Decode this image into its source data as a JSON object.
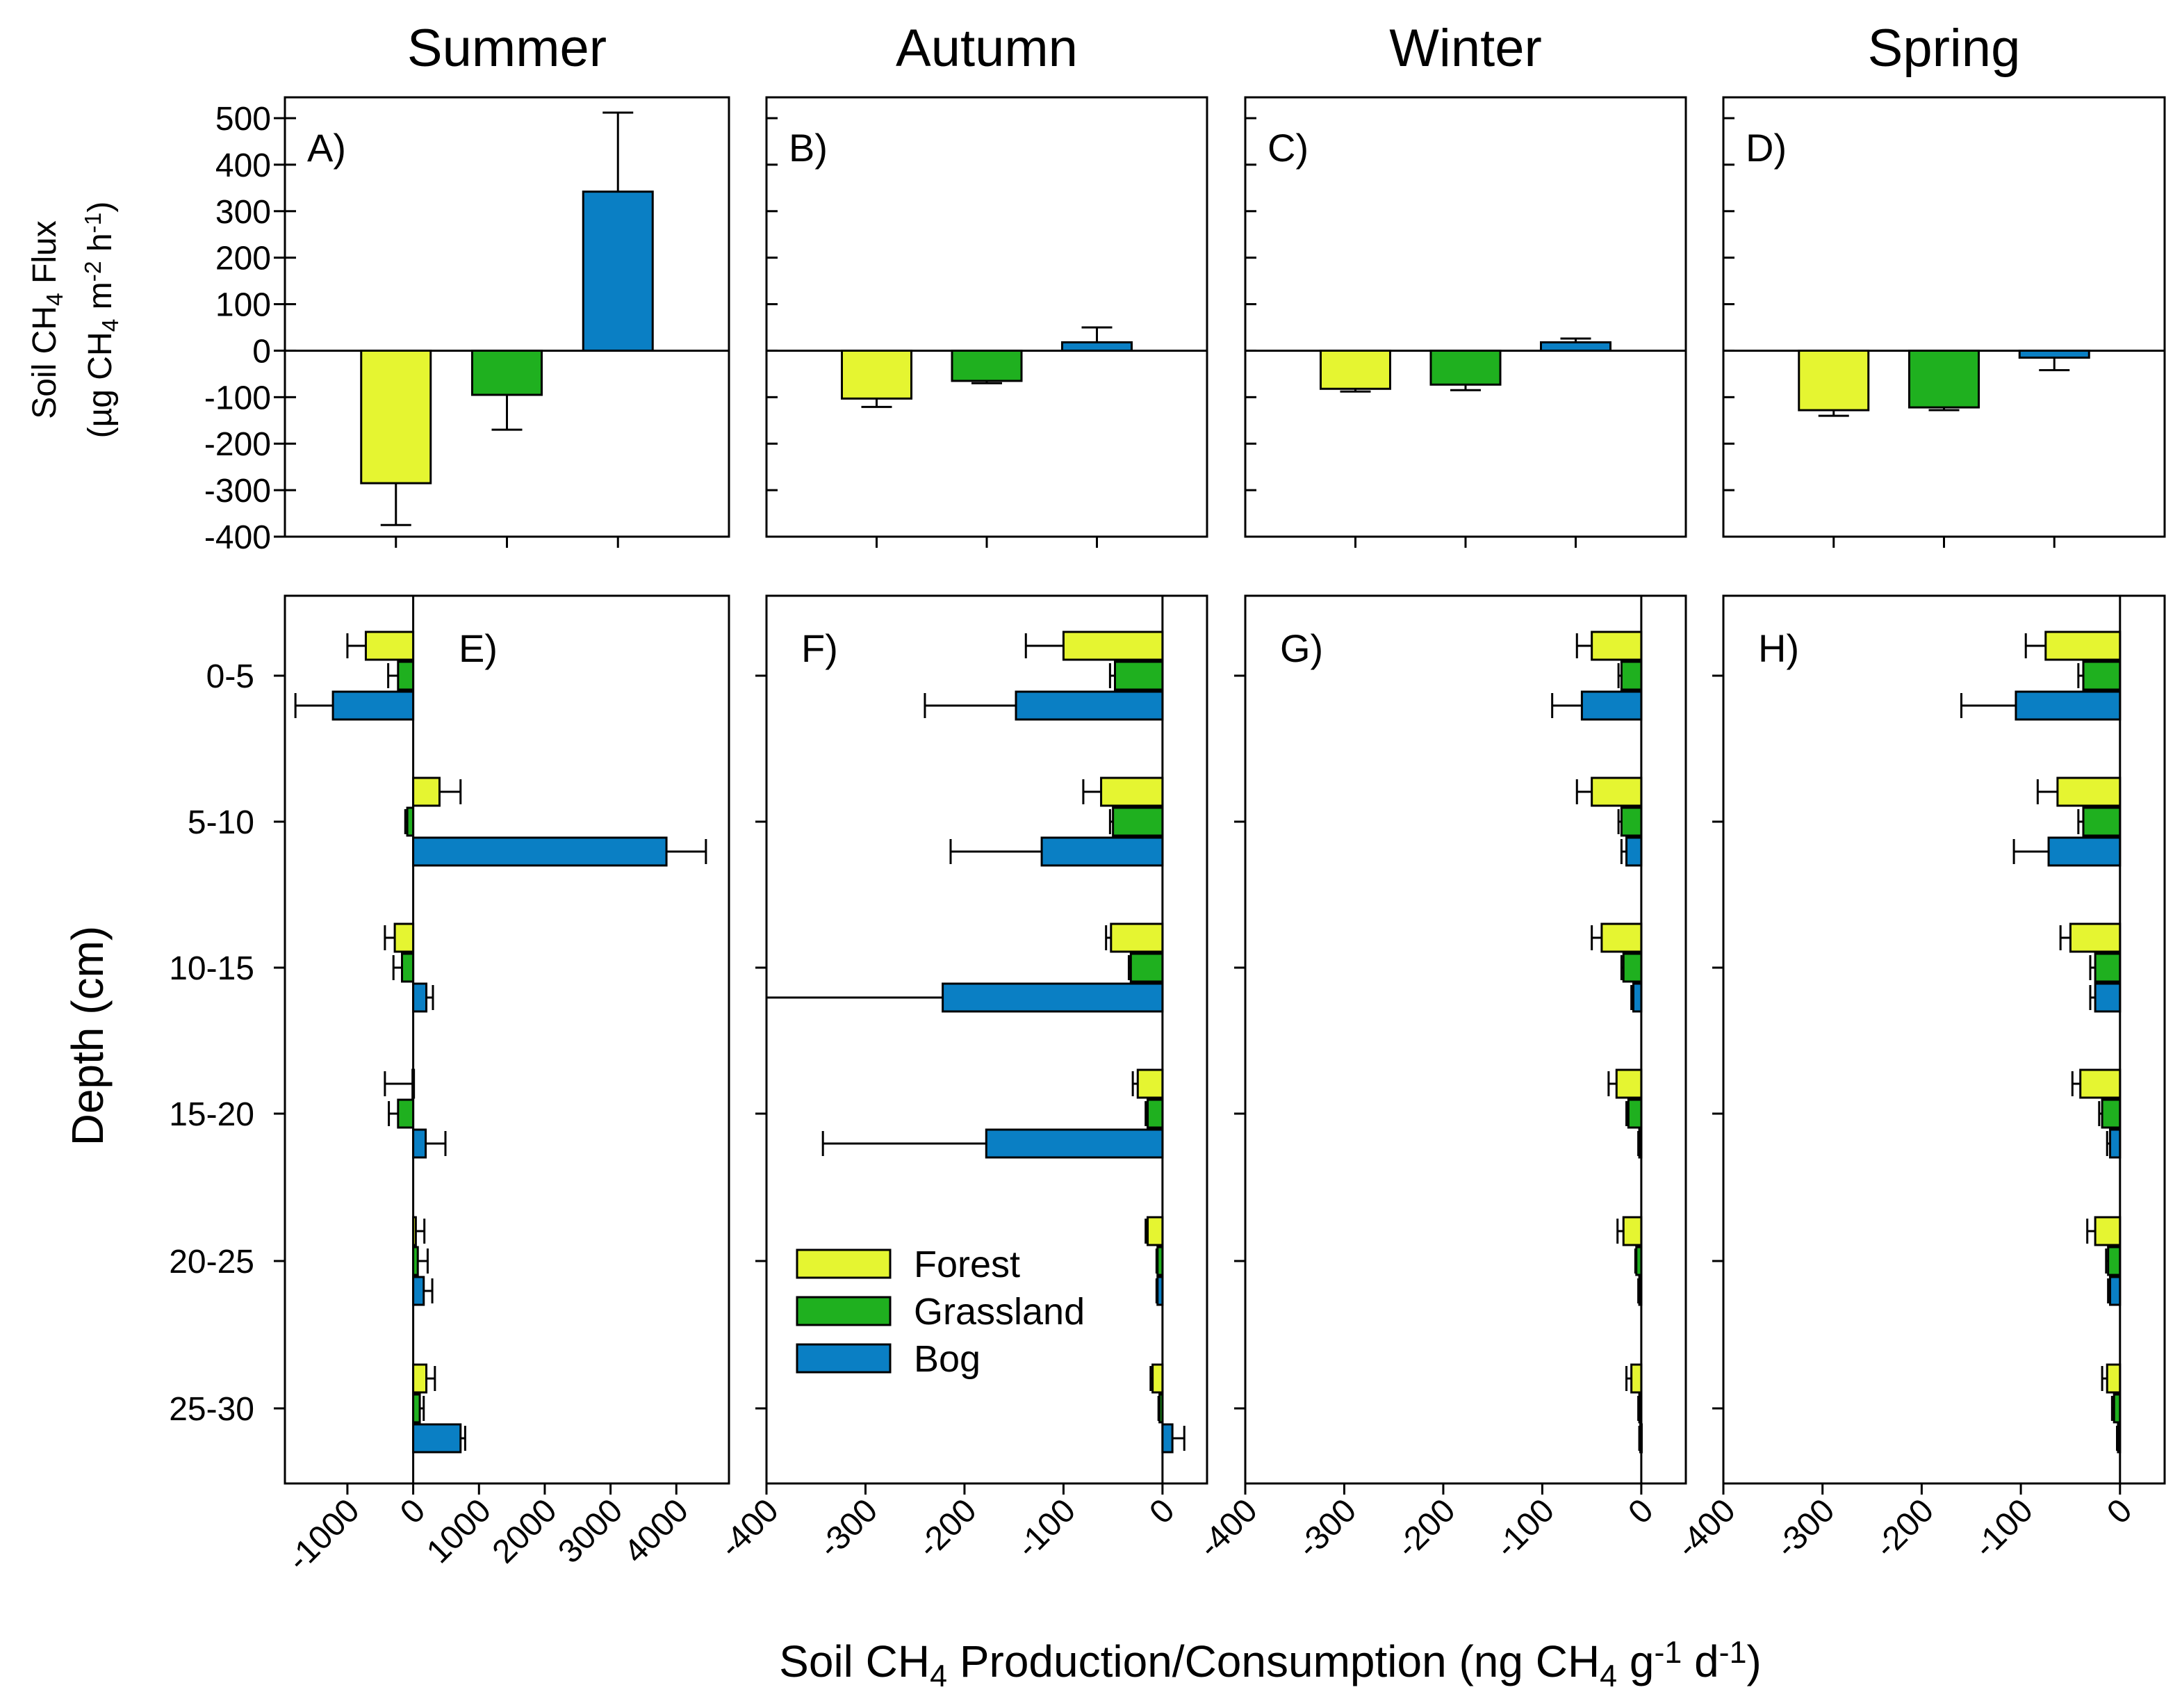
{
  "chart_data": {
    "type": "bar",
    "title": "",
    "colors": {
      "Forest": "#e5f531",
      "Grassland": "#1fb01f",
      "Bog": "#0a7fc4"
    },
    "legend": {
      "position": "inside panel F, lower-left",
      "entries": [
        "Forest",
        "Grassland",
        "Bog"
      ]
    },
    "top_row": {
      "ylabel_line1": "Soil CH4 Flux",
      "ylabel_line2": "(µg CH4 m-2 h-1)",
      "ylabel_parts": {
        "line1": [
          "Soil CH",
          "4",
          " Flux"
        ],
        "line2": [
          "(µg CH",
          "4",
          " m",
          "-2",
          " h",
          "-1",
          ")"
        ]
      },
      "ylim": [
        -400,
        500
      ],
      "yticks": [
        500,
        400,
        300,
        200,
        100,
        0,
        -100,
        -200,
        -300,
        -400
      ],
      "yticklabels": [
        "500",
        "400",
        "300",
        "200",
        "100",
        "0",
        "-100",
        "-200",
        "-300",
        "-400"
      ],
      "categories": [
        "Forest",
        "Grassland",
        "Bog"
      ],
      "panels": [
        {
          "season": "Summer",
          "letter": "A)",
          "values": [
            -285,
            -95,
            342
          ],
          "errors": [
            90,
            75,
            170
          ]
        },
        {
          "season": "Autumn",
          "letter": "B)",
          "values": [
            -103,
            -65,
            18
          ],
          "errors": [
            18,
            5,
            32
          ]
        },
        {
          "season": "Winter",
          "letter": "C)",
          "values": [
            -82,
            -73,
            18
          ],
          "errors": [
            6,
            12,
            8
          ]
        },
        {
          "season": "Spring",
          "letter": "D)",
          "values": [
            -128,
            -122,
            -15
          ],
          "errors": [
            12,
            6,
            27
          ]
        }
      ]
    },
    "bottom_row": {
      "ylabel": "Depth (cm)",
      "xlabel_parts": [
        "Soil CH",
        "4",
        " Production/Consumption (ng CH",
        "4",
        " g",
        "-1",
        " d",
        "-1",
        ")"
      ],
      "xlabel": "Soil CH4 Production/Consumption (ng CH4 g-1 d-1)",
      "depths": [
        "0-5",
        "5-10",
        "10-15",
        "15-20",
        "20-25",
        "25-30"
      ],
      "series": [
        "Forest",
        "Grassland",
        "Bog"
      ],
      "panels": [
        {
          "letter": "E)",
          "xlim": [
            -1950,
            4800
          ],
          "xticks": [
            -1000,
            0,
            1000,
            2000,
            3000,
            4000
          ],
          "xticklabels": [
            "-1000",
            "0",
            "1000",
            "2000",
            "3000",
            "4000"
          ],
          "values": {
            "Forest": [
              -720,
              400,
              -280,
              -10,
              40,
              200
            ],
            "Grassland": [
              -230,
              -90,
              -170,
              -230,
              70,
              100
            ],
            "Bog": [
              -1220,
              3850,
              200,
              190,
              160,
              720
            ]
          },
          "errors": {
            "Forest": [
              280,
              320,
              150,
              420,
              130,
              130
            ],
            "Grassland": [
              150,
              30,
              130,
              140,
              150,
              60
            ],
            "Bog": [
              570,
              600,
              100,
              300,
              130,
              70
            ]
          }
        },
        {
          "letter": "F)",
          "xlim": [
            -400,
            45
          ],
          "xticks": [
            -400,
            -300,
            -200,
            -100,
            0
          ],
          "xticklabels": [
            "-400",
            "-300",
            "-200",
            "-100",
            "0"
          ],
          "values": {
            "Forest": [
              -100,
              -62,
              -52,
              -25,
              -15,
              -10
            ],
            "Grassland": [
              -48,
              -50,
              -32,
              -15,
              -5,
              -3
            ],
            "Bog": [
              -148,
              -122,
              -222,
              -178,
              -5,
              10
            ]
          },
          "errors": {
            "Forest": [
              38,
              18,
              5,
              5,
              2,
              2
            ],
            "Grassland": [
              5,
              3,
              2,
              2,
              1,
              1
            ],
            "Bog": [
              92,
              92,
              178,
              165,
              1,
              12
            ]
          }
        },
        {
          "letter": "G)",
          "xlim": [
            -400,
            45
          ],
          "xticks": [
            -400,
            -300,
            -200,
            -100,
            0
          ],
          "xticklabels": [
            "-400",
            "-300",
            "-200",
            "-100",
            "0"
          ],
          "values": {
            "Forest": [
              -50,
              -50,
              -40,
              -25,
              -18,
              -10
            ],
            "Grassland": [
              -20,
              -20,
              -18,
              -13,
              -5,
              -2
            ],
            "Bog": [
              -60,
              -15,
              -8,
              -2,
              -2,
              -1
            ]
          },
          "errors": {
            "Forest": [
              15,
              15,
              10,
              8,
              6,
              5
            ],
            "Grassland": [
              3,
              3,
              2,
              2,
              1,
              1
            ],
            "Bog": [
              30,
              5,
              2,
              1,
              1,
              1
            ]
          }
        },
        {
          "letter": "H)",
          "xlim": [
            -400,
            45
          ],
          "xticks": [
            -400,
            -300,
            -200,
            -100,
            0
          ],
          "xticklabels": [
            "-400",
            "-300",
            "-200",
            "-100",
            "0"
          ],
          "values": {
            "Forest": [
              -75,
              -63,
              -50,
              -40,
              -25,
              -13
            ],
            "Grassland": [
              -37,
              -37,
              -25,
              -18,
              -12,
              -6
            ],
            "Bog": [
              -105,
              -72,
              -25,
              -10,
              -10,
              -2
            ]
          },
          "errors": {
            "Forest": [
              20,
              20,
              10,
              8,
              8,
              5
            ],
            "Grassland": [
              5,
              5,
              5,
              3,
              2,
              2
            ],
            "Bog": [
              55,
              35,
              5,
              3,
              2,
              1
            ]
          }
        }
      ]
    }
  }
}
